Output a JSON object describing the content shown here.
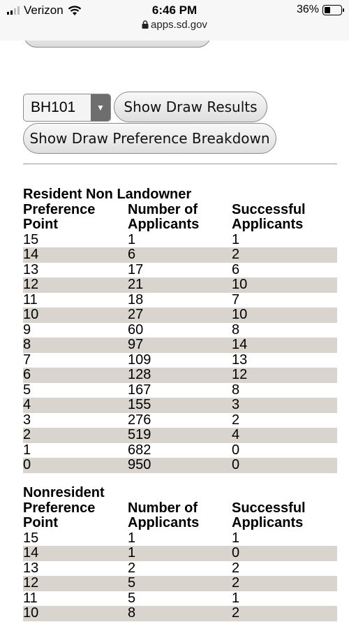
{
  "status_bar": {
    "carrier": "Verizon",
    "time": "6:46 PM",
    "battery": "36%",
    "url": "apps.sd.gov"
  },
  "controls": {
    "unit_value": "BH101",
    "show_results_label": "Show Draw Results",
    "show_breakdown_label": "Show Draw Preference Breakdown"
  },
  "tables": [
    {
      "title": "Resident Non Landowner",
      "headers": [
        [
          "Preference",
          "Point"
        ],
        [
          "Number of",
          "Applicants"
        ],
        [
          "Successful",
          "Applicants"
        ]
      ],
      "rows": [
        [
          "15",
          "1",
          "1"
        ],
        [
          "14",
          "6",
          "2"
        ],
        [
          "13",
          "17",
          "6"
        ],
        [
          "12",
          "21",
          "10"
        ],
        [
          "11",
          "18",
          "7"
        ],
        [
          "10",
          "27",
          "10"
        ],
        [
          "9",
          "60",
          "8"
        ],
        [
          "8",
          "97",
          "14"
        ],
        [
          "7",
          "109",
          "13"
        ],
        [
          "6",
          "128",
          "12"
        ],
        [
          "5",
          "167",
          "8"
        ],
        [
          "4",
          "155",
          "3"
        ],
        [
          "3",
          "276",
          "2"
        ],
        [
          "2",
          "519",
          "4"
        ],
        [
          "1",
          "682",
          "0"
        ],
        [
          "0",
          "950",
          "0"
        ]
      ]
    },
    {
      "title": "Nonresident",
      "headers": [
        [
          "Preference",
          "Point"
        ],
        [
          "Number of",
          "Applicants"
        ],
        [
          "Successful",
          "Applicants"
        ]
      ],
      "rows": [
        [
          "15",
          "1",
          "1"
        ],
        [
          "14",
          "1",
          "0"
        ],
        [
          "13",
          "2",
          "2"
        ],
        [
          "12",
          "5",
          "2"
        ],
        [
          "11",
          "5",
          "1"
        ],
        [
          "10",
          "8",
          "2"
        ]
      ]
    }
  ]
}
